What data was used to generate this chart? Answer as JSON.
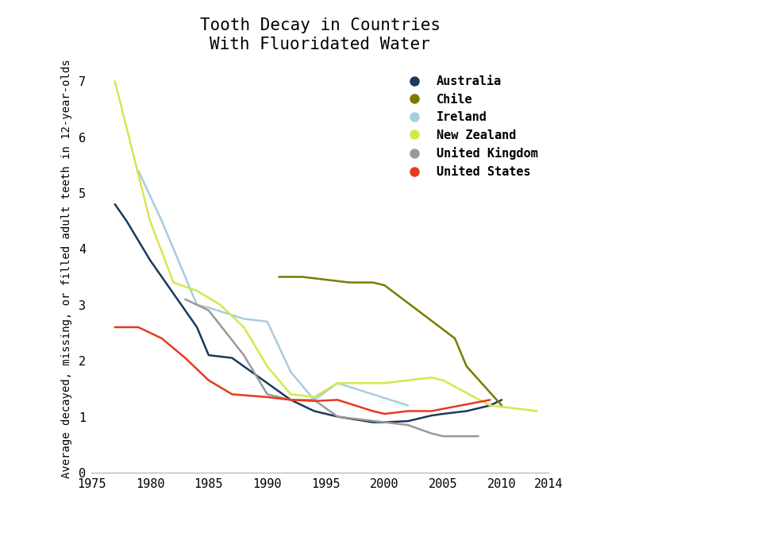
{
  "title": "Tooth Decay in Countries\nWith Fluoridated Water",
  "ylabel": "Average decayed, missing, or filled adult teeth in 12-year-olds",
  "xlim": [
    1975,
    2014
  ],
  "ylim": [
    0,
    7.3
  ],
  "yticks": [
    0,
    1,
    2,
    3,
    4,
    5,
    6,
    7
  ],
  "xticks": [
    1975,
    1980,
    1985,
    1990,
    1995,
    2000,
    2005,
    2010,
    2014
  ],
  "background_color": "#ffffff",
  "series": [
    {
      "label": "Australia",
      "color": "#1a3a5c",
      "linewidth": 1.8,
      "x": [
        1977,
        1978,
        1980,
        1982,
        1984,
        1985,
        1987,
        1990,
        1992,
        1993,
        1994,
        1995,
        1996,
        1999,
        2000,
        2002,
        2004,
        2005,
        2007,
        2009,
        2010
      ],
      "y": [
        4.8,
        4.5,
        3.8,
        3.2,
        2.6,
        2.1,
        2.05,
        1.6,
        1.3,
        1.2,
        1.1,
        1.05,
        1.0,
        0.9,
        0.9,
        0.92,
        1.02,
        1.05,
        1.1,
        1.2,
        1.3
      ]
    },
    {
      "label": "Chile",
      "color": "#7a7a00",
      "linewidth": 1.8,
      "x": [
        1991,
        1992,
        1993,
        1995,
        1997,
        1999,
        2000,
        2006,
        2007,
        2010
      ],
      "y": [
        3.5,
        3.5,
        3.5,
        3.45,
        3.4,
        3.4,
        3.35,
        2.4,
        1.9,
        1.2
      ]
    },
    {
      "label": "Ireland",
      "color": "#a8cce0",
      "linewidth": 1.8,
      "x": [
        1979,
        1981,
        1984,
        1985,
        1988,
        1990,
        1992,
        1994,
        1996,
        2002
      ],
      "y": [
        5.4,
        4.5,
        3.0,
        2.95,
        2.75,
        2.7,
        1.8,
        1.3,
        1.6,
        1.2
      ]
    },
    {
      "label": "New Zealand",
      "color": "#d4e84a",
      "linewidth": 1.8,
      "x": [
        1977,
        1980,
        1982,
        1984,
        1986,
        1988,
        1990,
        1992,
        1994,
        1996,
        1998,
        2000,
        2004,
        2005,
        2009,
        2013
      ],
      "y": [
        7.0,
        4.5,
        3.4,
        3.25,
        3.0,
        2.6,
        1.9,
        1.4,
        1.35,
        1.6,
        1.6,
        1.6,
        1.7,
        1.65,
        1.2,
        1.1
      ]
    },
    {
      "label": "United Kingdom",
      "color": "#999999",
      "linewidth": 1.8,
      "x": [
        1983,
        1985,
        1988,
        1990,
        1992,
        1994,
        1996,
        1998,
        2000,
        2002,
        2004,
        2005,
        2007,
        2008
      ],
      "y": [
        3.1,
        2.9,
        2.1,
        1.4,
        1.3,
        1.3,
        1.0,
        0.95,
        0.9,
        0.85,
        0.7,
        0.65,
        0.65,
        0.65
      ]
    },
    {
      "label": "United States",
      "color": "#e83a1e",
      "linewidth": 1.8,
      "x": [
        1977,
        1979,
        1981,
        1983,
        1985,
        1987,
        1990,
        1992,
        1994,
        1996,
        1999,
        2000,
        2002,
        2004,
        2009
      ],
      "y": [
        2.6,
        2.6,
        2.4,
        2.05,
        1.65,
        1.4,
        1.35,
        1.3,
        1.28,
        1.3,
        1.1,
        1.05,
        1.1,
        1.1,
        1.3
      ]
    }
  ],
  "legend_marker_size": 10,
  "title_fontsize": 15,
  "tick_fontsize": 11,
  "ylabel_fontsize": 10,
  "legend_fontsize": 11
}
